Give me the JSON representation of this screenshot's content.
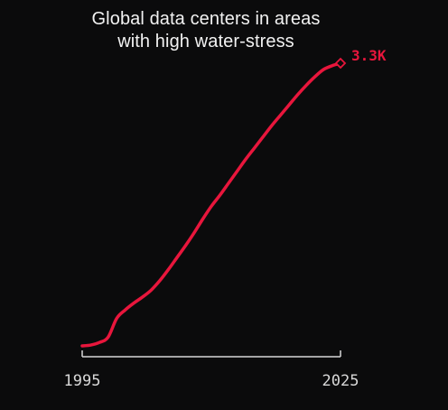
{
  "chart_data": {
    "type": "line",
    "title": [
      "Global data centers in areas",
      "with high water-stress"
    ],
    "xlabel": "",
    "ylabel": "",
    "x_ticks": [
      "1995",
      "2025"
    ],
    "xlim": [
      1995,
      2025
    ],
    "ylim": [
      0,
      3300
    ],
    "series": [
      {
        "color": "#e8163c",
        "x": [
          1995,
          1996,
          1997,
          1998,
          1999,
          2000,
          2001,
          2002,
          2003,
          2004,
          2005,
          2006,
          2007,
          2008,
          2009,
          2010,
          2011,
          2012,
          2013,
          2014,
          2015,
          2016,
          2017,
          2018,
          2019,
          2020,
          2021,
          2022,
          2023,
          2024,
          2025
        ],
        "values": [
          0,
          10,
          40,
          100,
          320,
          420,
          500,
          570,
          650,
          760,
          890,
          1030,
          1170,
          1320,
          1480,
          1630,
          1760,
          1900,
          2040,
          2180,
          2310,
          2440,
          2570,
          2690,
          2810,
          2930,
          3040,
          3140,
          3225,
          3270,
          3300
        ]
      }
    ],
    "end_label": "3.3K"
  },
  "colors": {
    "background": "#0b0b0c",
    "line": "#e8163c",
    "axis": "#d8d8d8",
    "text": "#f2f2f2"
  }
}
